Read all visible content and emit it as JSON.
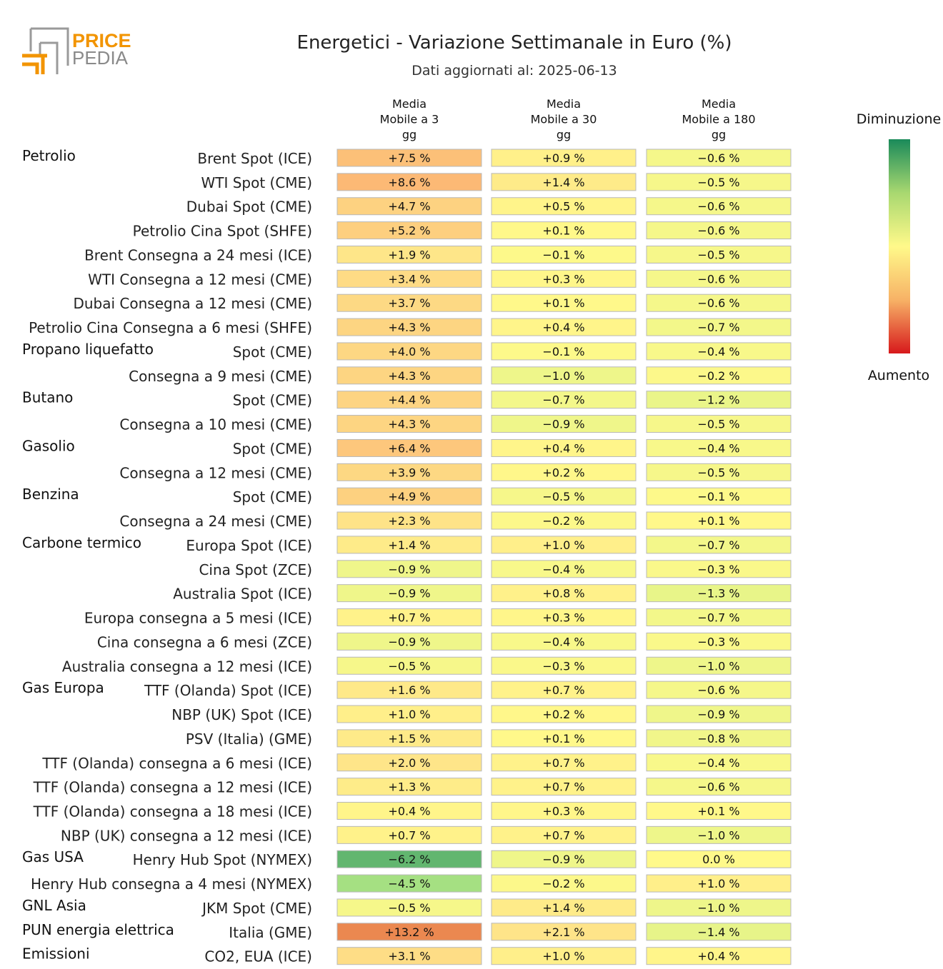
{
  "logo": {
    "line1": "PRICE",
    "line2": "PEDIA"
  },
  "chart_data": {
    "type": "table",
    "title": "Energetici - Variazione Settimanale in Euro (%)",
    "subtitle": "Dati aggiornati al: 2025-06-13",
    "columns": [
      "Media\nMobile a 3\ngg",
      "Media\nMobile a 30\ngg",
      "Media\nMobile a 180\ngg"
    ],
    "legend": {
      "top_label": "Diminuzione",
      "bottom_label": "Aumento",
      "colors": [
        "#1a8a5a",
        "#a8d870",
        "#fff98a",
        "#f7b266",
        "#d7191c"
      ]
    },
    "groups": [
      {
        "name": "Petrolio",
        "rows": [
          {
            "label": "Brent Spot (ICE)",
            "values": [
              7.5,
              0.9,
              -0.6
            ]
          },
          {
            "label": "WTI Spot (CME)",
            "values": [
              8.6,
              1.4,
              -0.5
            ]
          },
          {
            "label": "Dubai Spot (CME)",
            "values": [
              4.7,
              0.5,
              -0.6
            ]
          },
          {
            "label": "Petrolio Cina Spot (SHFE)",
            "values": [
              5.2,
              0.1,
              -0.6
            ]
          },
          {
            "label": "Brent Consegna a 24 mesi (ICE)",
            "values": [
              1.9,
              -0.1,
              -0.5
            ]
          },
          {
            "label": "WTI Consegna a 12 mesi (CME)",
            "values": [
              3.4,
              0.3,
              -0.6
            ]
          },
          {
            "label": "Dubai Consegna a 12 mesi (CME)",
            "values": [
              3.7,
              0.1,
              -0.6
            ]
          },
          {
            "label": "Petrolio Cina Consegna a 6 mesi (SHFE)",
            "values": [
              4.3,
              0.4,
              -0.7
            ]
          }
        ]
      },
      {
        "name": "Propano liquefatto",
        "rows": [
          {
            "label": "Spot (CME)",
            "values": [
              4.0,
              -0.1,
              -0.4
            ]
          },
          {
            "label": "Consegna a 9 mesi (CME)",
            "values": [
              4.3,
              -1.0,
              -0.2
            ]
          }
        ]
      },
      {
        "name": "Butano",
        "rows": [
          {
            "label": "Spot (CME)",
            "values": [
              4.4,
              -0.7,
              -1.2
            ]
          },
          {
            "label": "Consegna a 10 mesi (CME)",
            "values": [
              4.3,
              -0.9,
              -0.5
            ]
          }
        ]
      },
      {
        "name": "Gasolio",
        "rows": [
          {
            "label": "Spot (CME)",
            "values": [
              6.4,
              0.4,
              -0.4
            ]
          },
          {
            "label": "Consegna a 12 mesi (CME)",
            "values": [
              3.9,
              0.2,
              -0.5
            ]
          }
        ]
      },
      {
        "name": "Benzina",
        "rows": [
          {
            "label": "Spot (CME)",
            "values": [
              4.9,
              -0.5,
              -0.1
            ]
          },
          {
            "label": "Consegna a 24 mesi (CME)",
            "values": [
              2.3,
              -0.2,
              0.1
            ]
          }
        ]
      },
      {
        "name": "Carbone termico",
        "rows": [
          {
            "label": "Europa Spot (ICE)",
            "values": [
              1.4,
              1.0,
              -0.7
            ]
          },
          {
            "label": "Cina Spot (ZCE)",
            "values": [
              -0.9,
              -0.4,
              -0.3
            ]
          },
          {
            "label": "Australia Spot (ICE)",
            "values": [
              -0.9,
              0.8,
              -1.3
            ]
          },
          {
            "label": "Europa consegna a 5 mesi (ICE)",
            "values": [
              0.7,
              0.3,
              -0.7
            ]
          },
          {
            "label": "Cina consegna a 6 mesi (ZCE)",
            "values": [
              -0.9,
              -0.4,
              -0.3
            ]
          },
          {
            "label": "Australia consegna a 12 mesi (ICE)",
            "values": [
              -0.5,
              -0.3,
              -1.0
            ]
          }
        ]
      },
      {
        "name": "Gas Europa",
        "rows": [
          {
            "label": "TTF (Olanda) Spot (ICE)",
            "values": [
              1.6,
              0.7,
              -0.6
            ]
          },
          {
            "label": "NBP (UK) Spot (ICE)",
            "values": [
              1.0,
              0.2,
              -0.9
            ]
          },
          {
            "label": "PSV (Italia) (GME)",
            "values": [
              1.5,
              0.1,
              -0.8
            ]
          },
          {
            "label": "TTF (Olanda) consegna a 6 mesi (ICE)",
            "values": [
              2.0,
              0.7,
              -0.4
            ]
          },
          {
            "label": "TTF (Olanda) consegna a 12 mesi (ICE)",
            "values": [
              1.3,
              0.7,
              -0.6
            ]
          },
          {
            "label": "TTF (Olanda) consegna a 18 mesi (ICE)",
            "values": [
              0.4,
              0.3,
              0.1
            ]
          },
          {
            "label": "NBP (UK) consegna a 12 mesi (ICE)",
            "values": [
              0.7,
              0.7,
              -1.0
            ]
          }
        ]
      },
      {
        "name": "Gas USA",
        "rows": [
          {
            "label": "Henry Hub Spot (NYMEX)",
            "values": [
              -6.2,
              -0.9,
              0.0
            ]
          },
          {
            "label": "Henry Hub consegna a 4 mesi (NYMEX)",
            "values": [
              -4.5,
              -0.2,
              1.0
            ]
          }
        ]
      },
      {
        "name": "GNL Asia",
        "rows": [
          {
            "label": "JKM Spot (CME)",
            "values": [
              -0.5,
              1.4,
              -1.0
            ]
          }
        ]
      },
      {
        "name": "PUN energia elettrica",
        "rows": [
          {
            "label": "Italia (GME)",
            "values": [
              13.2,
              2.1,
              -1.4
            ]
          }
        ]
      },
      {
        "name": "Emissioni",
        "rows": [
          {
            "label": "CO2, EUA (ICE)",
            "values": [
              3.1,
              1.0,
              0.4
            ]
          }
        ]
      }
    ]
  }
}
